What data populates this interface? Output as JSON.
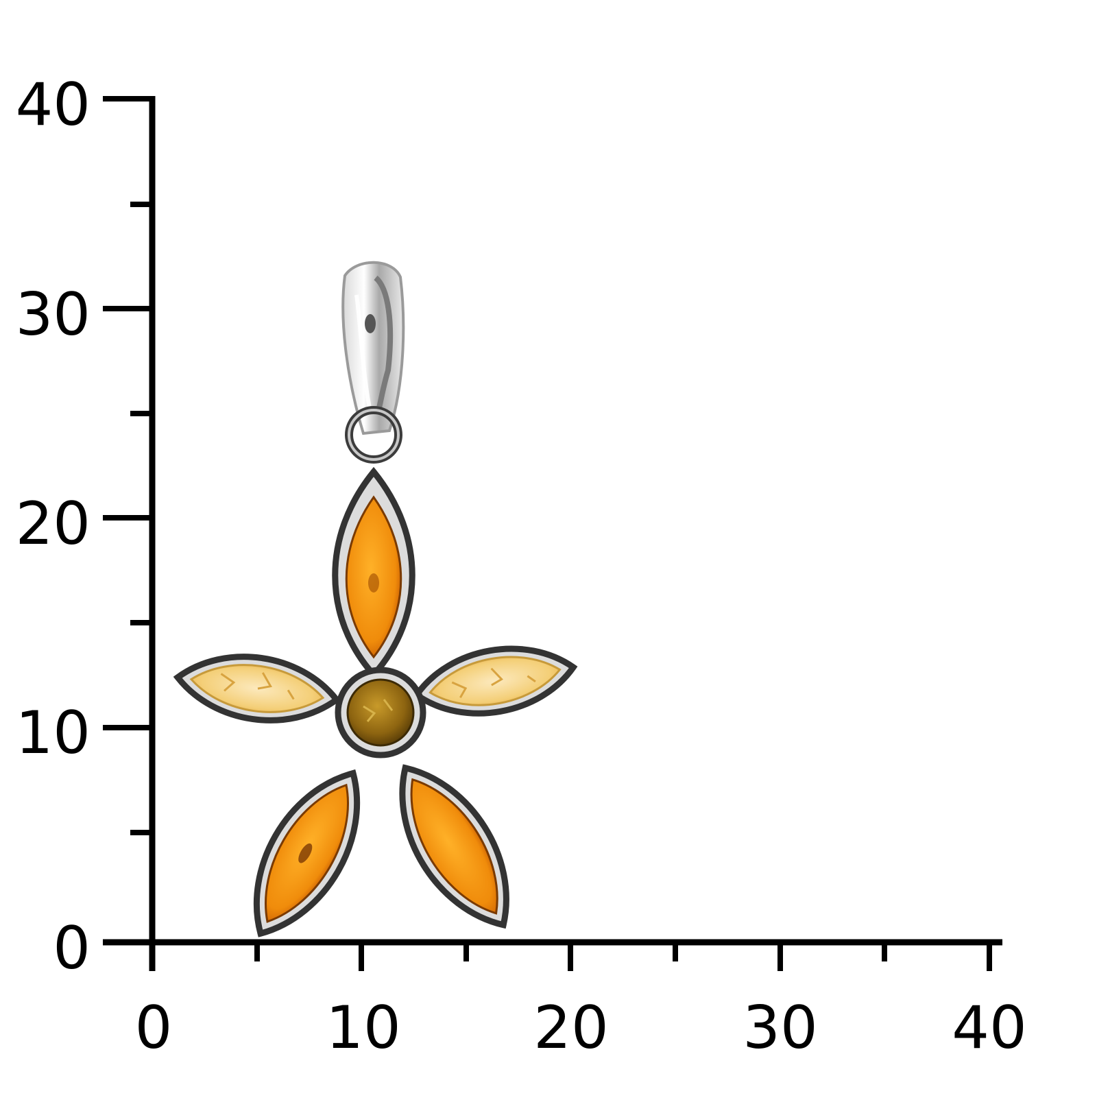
{
  "scale": {
    "y_ticks": [
      "40",
      "30",
      "20",
      "10",
      "0"
    ],
    "x_ticks": [
      "0",
      "10",
      "20",
      "30",
      "40"
    ],
    "unit": ""
  },
  "product": {
    "colors": {
      "silver": "#b9b9b9",
      "silver_dark": "#3c3c3c",
      "cognac": "#f29a12",
      "cognac_dark": "#b84a00",
      "lemon": "#f4cf78",
      "lemon_light": "#fbe6b5",
      "center": "#9a6a10"
    }
  }
}
